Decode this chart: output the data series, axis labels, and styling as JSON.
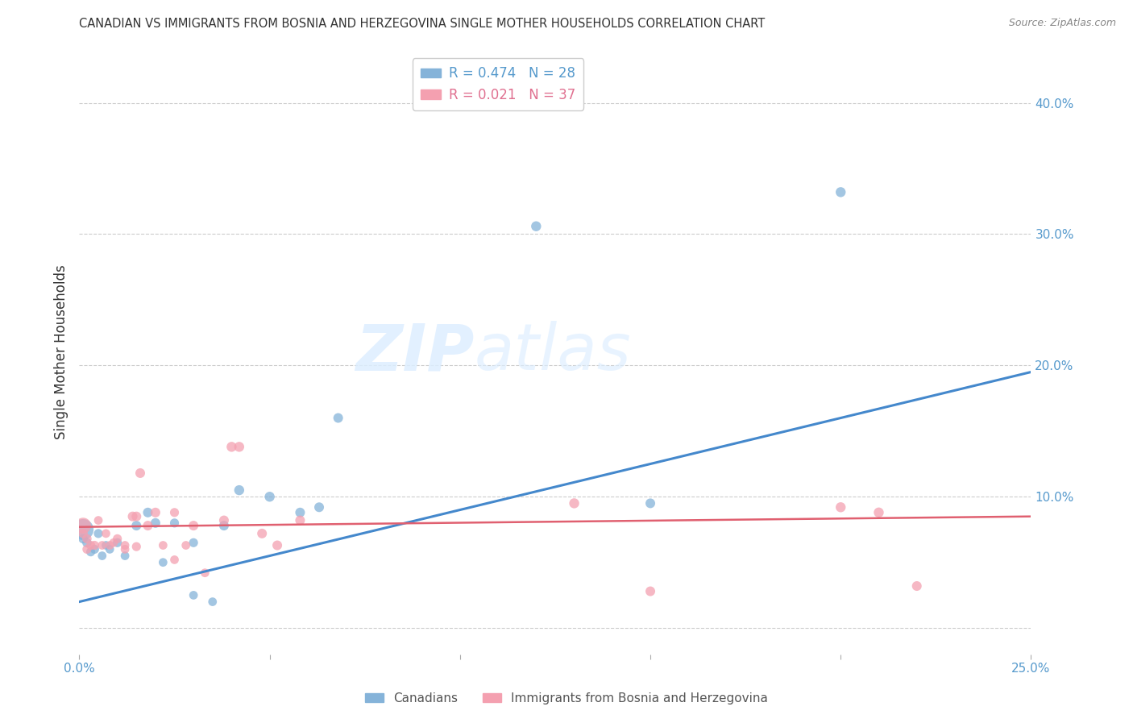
{
  "title": "CANADIAN VS IMMIGRANTS FROM BOSNIA AND HERZEGOVINA SINGLE MOTHER HOUSEHOLDS CORRELATION CHART",
  "source": "Source: ZipAtlas.com",
  "ylabel": "Single Mother Households",
  "xlim": [
    0.0,
    0.25
  ],
  "ylim": [
    -0.02,
    0.44
  ],
  "yticks": [
    0.0,
    0.1,
    0.2,
    0.3,
    0.4
  ],
  "xticks": [
    0.0,
    0.05,
    0.1,
    0.15,
    0.2,
    0.25
  ],
  "xtick_labels": [
    "0.0%",
    "",
    "",
    "",
    "",
    "25.0%"
  ],
  "ytick_labels_right": [
    "",
    "10.0%",
    "20.0%",
    "30.0%",
    "40.0%"
  ],
  "canadian_R": 0.474,
  "canadian_N": 28,
  "bosnian_R": 0.021,
  "bosnian_N": 37,
  "canadian_color": "#85B3D9",
  "bosnian_color": "#F4A0B0",
  "line_canadian_color": "#4488CC",
  "line_bosnian_color": "#E06070",
  "watermark_zip": "ZIP",
  "watermark_atlas": "atlas",
  "canadians_x": [
    0.001,
    0.001,
    0.002,
    0.003,
    0.004,
    0.005,
    0.006,
    0.007,
    0.008,
    0.01,
    0.012,
    0.015,
    0.018,
    0.02,
    0.022,
    0.025,
    0.03,
    0.035,
    0.038,
    0.042,
    0.05,
    0.058,
    0.063,
    0.068,
    0.12,
    0.15,
    0.2,
    0.03
  ],
  "canadians_y": [
    0.075,
    0.068,
    0.065,
    0.058,
    0.06,
    0.072,
    0.055,
    0.063,
    0.06,
    0.065,
    0.055,
    0.078,
    0.088,
    0.08,
    0.05,
    0.08,
    0.025,
    0.02,
    0.078,
    0.105,
    0.1,
    0.088,
    0.092,
    0.16,
    0.306,
    0.095,
    0.332,
    0.065
  ],
  "canadians_size": [
    350,
    70,
    70,
    65,
    65,
    65,
    60,
    60,
    60,
    65,
    60,
    75,
    75,
    75,
    60,
    65,
    60,
    60,
    75,
    80,
    80,
    75,
    75,
    75,
    80,
    75,
    80,
    65
  ],
  "bosnians_x": [
    0.001,
    0.001,
    0.002,
    0.002,
    0.003,
    0.004,
    0.005,
    0.006,
    0.007,
    0.008,
    0.009,
    0.01,
    0.012,
    0.014,
    0.015,
    0.016,
    0.018,
    0.02,
    0.022,
    0.025,
    0.028,
    0.03,
    0.033,
    0.038,
    0.04,
    0.042,
    0.048,
    0.052,
    0.058,
    0.13,
    0.15,
    0.2,
    0.21,
    0.22,
    0.025,
    0.015,
    0.012
  ],
  "bosnians_y": [
    0.078,
    0.072,
    0.068,
    0.06,
    0.063,
    0.063,
    0.082,
    0.063,
    0.072,
    0.063,
    0.065,
    0.068,
    0.063,
    0.085,
    0.085,
    0.118,
    0.078,
    0.088,
    0.063,
    0.052,
    0.063,
    0.078,
    0.042,
    0.082,
    0.138,
    0.138,
    0.072,
    0.063,
    0.082,
    0.095,
    0.028,
    0.092,
    0.088,
    0.032,
    0.088,
    0.062,
    0.06
  ],
  "bosnians_size": [
    200,
    70,
    70,
    65,
    65,
    65,
    60,
    60,
    60,
    60,
    60,
    65,
    60,
    75,
    75,
    75,
    75,
    75,
    60,
    60,
    60,
    75,
    60,
    75,
    80,
    80,
    75,
    75,
    75,
    80,
    75,
    80,
    80,
    75,
    65,
    65,
    60
  ],
  "canadian_trend_x": [
    0.0,
    0.25
  ],
  "canadian_trend_y": [
    0.02,
    0.195
  ],
  "bosnian_trend_x": [
    0.0,
    0.25
  ],
  "bosnian_trend_y": [
    0.077,
    0.085
  ],
  "background_color": "#FFFFFF",
  "grid_color": "#CCCCCC",
  "title_color": "#333333",
  "axis_label_color": "#5599CC",
  "legend_text_color_1": "#5599CC",
  "legend_text_color_2": "#E07090"
}
